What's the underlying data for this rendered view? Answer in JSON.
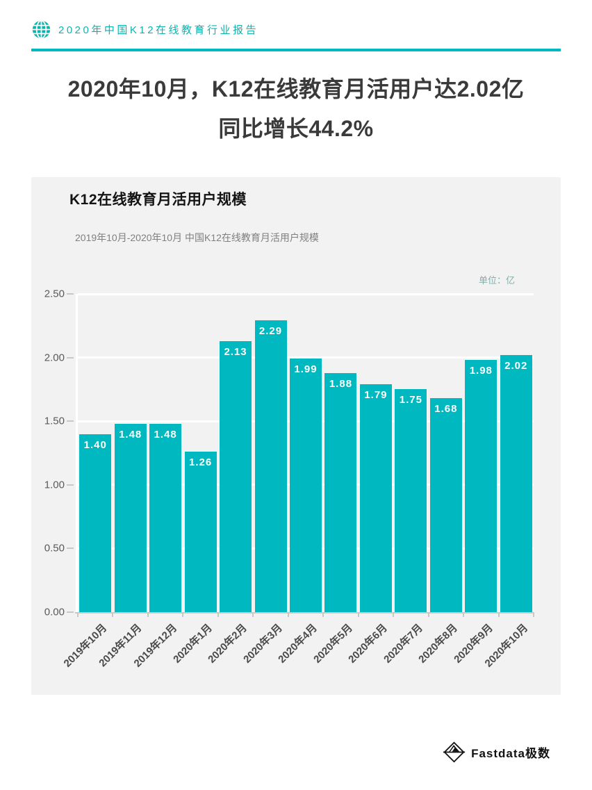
{
  "header": {
    "report_title": "2020年中国K12在线教育行业报告",
    "logo_icon": "globe-icon"
  },
  "main_title": {
    "line1": "2020年10月，K12在线教育月活用户达2.02亿",
    "line2": "同比增长44.2%"
  },
  "chart_data": {
    "type": "bar",
    "title": "K12在线教育月活用户规模",
    "subtitle": "2019年10月-2020年10月 中国K12在线教育月活用户规模",
    "unit_label": "单位：亿",
    "categories": [
      "2019年10月",
      "2019年11月",
      "2019年12月",
      "2020年1月",
      "2020年2月",
      "2020年3月",
      "2020年4月",
      "2020年5月",
      "2020年6月",
      "2020年7月",
      "2020年8月",
      "2020年9月",
      "2020年10月"
    ],
    "values": [
      1.4,
      1.48,
      1.48,
      1.26,
      2.13,
      2.29,
      1.99,
      1.88,
      1.79,
      1.75,
      1.68,
      1.98,
      2.02
    ],
    "value_labels": [
      "1.40",
      "1.48",
      "1.48",
      "1.26",
      "2.13",
      "2.29",
      "1.99",
      "1.88",
      "1.79",
      "1.75",
      "1.68",
      "1.98",
      "2.02"
    ],
    "ylim": [
      0,
      2.5
    ],
    "ytick_values": [
      0,
      0.5,
      1.0,
      1.5,
      2.0,
      2.5
    ],
    "ytick_labels": [
      "0.00",
      "0.50",
      "1.00",
      "1.50",
      "2.00",
      "2.50"
    ],
    "xlabel": "",
    "ylabel": "",
    "legend": "none",
    "grid": "horizontal white gridlines on light gray plot background"
  },
  "footer": {
    "brand": "Fastdata极数",
    "brand_icon": "iceberg-diamond-icon"
  },
  "colors": {
    "accent_teal": "#00b9c0",
    "header_teal": "#0fb3ae",
    "panel_bg": "#f2f2f2",
    "grid_white": "#ffffff",
    "axis_gray": "#c8c8c8",
    "title_dark": "#3a3a3a",
    "axis_label_gray": "#595959",
    "subtitle_gray": "#7f7f7f",
    "unit_teal": "#7fb0ab",
    "bar_value_white": "#ffffff"
  }
}
